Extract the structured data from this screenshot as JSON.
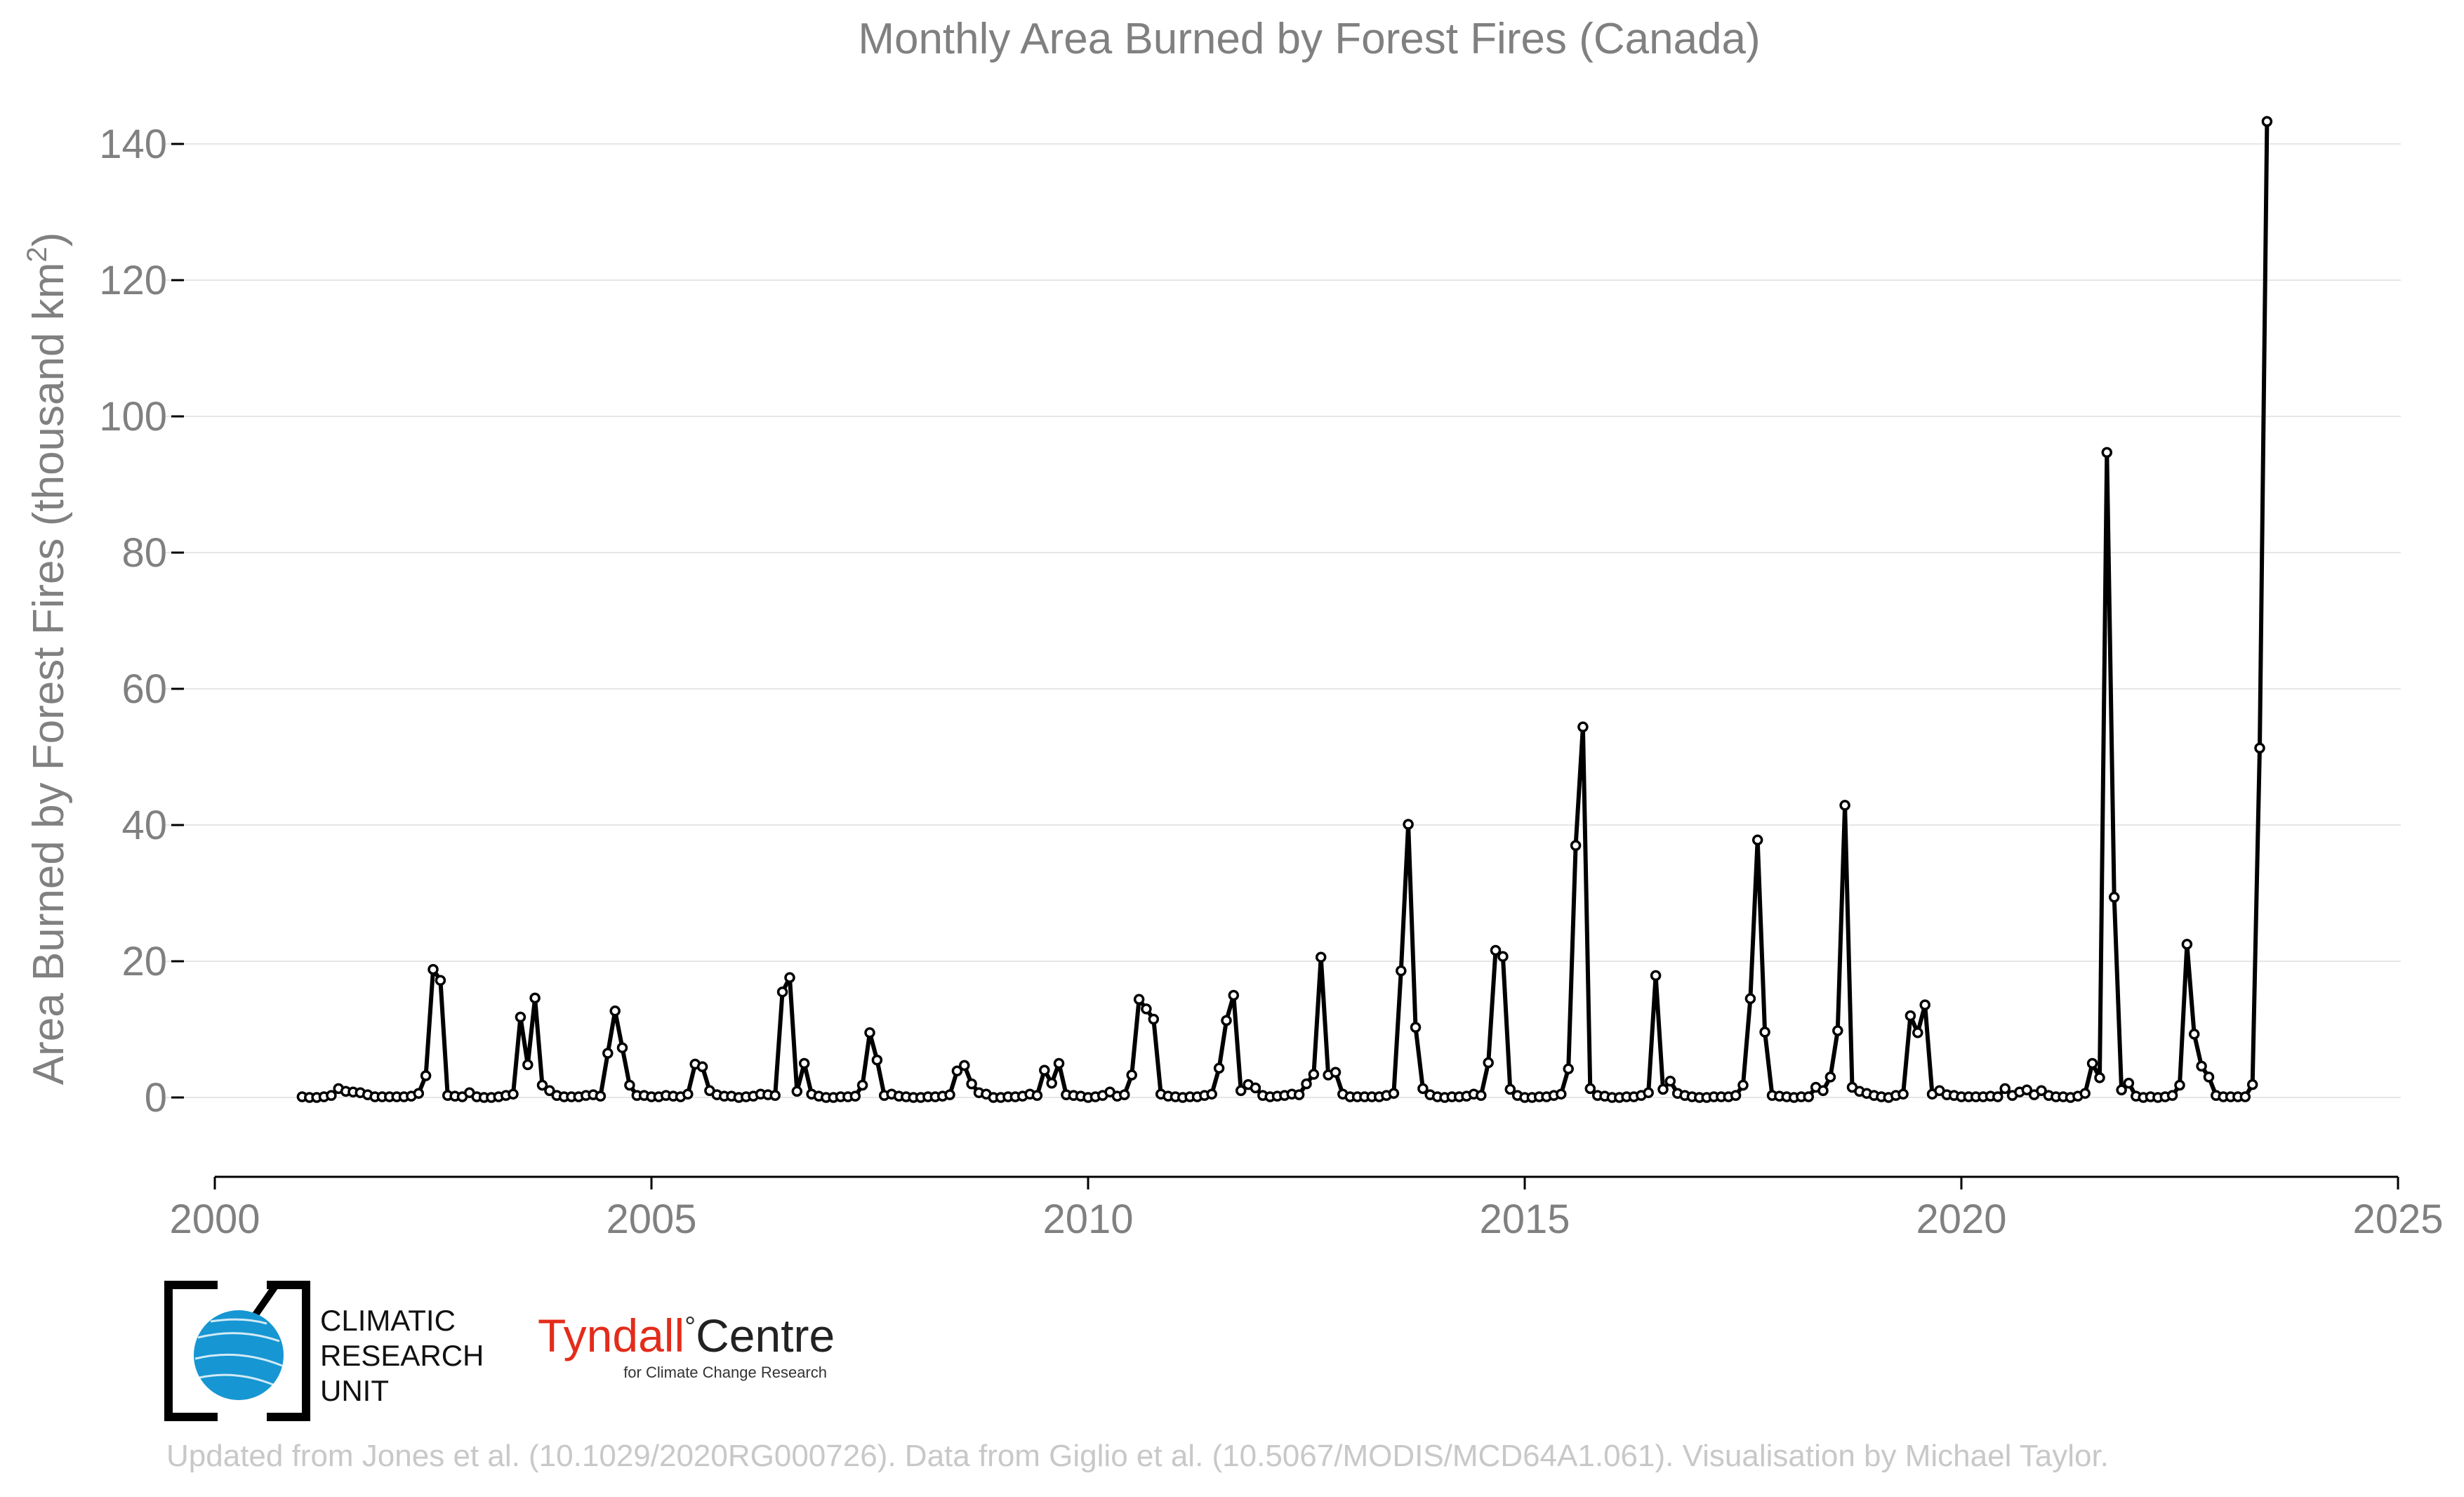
{
  "chart_data": {
    "type": "line",
    "title": "Monthly Area Burned by Forest Fires (Canada)",
    "ylabel_main": "Area Burned by Forest Fires (thousand km",
    "ylabel_sup": "2",
    "ylabel_close": ")",
    "xlim": [
      2000,
      2025
    ],
    "ylim": [
      -11,
      145
    ],
    "x_ticks": [
      2000,
      2005,
      2010,
      2015,
      2020,
      2025
    ],
    "y_ticks": [
      0,
      20,
      40,
      60,
      80,
      100,
      120,
      140
    ],
    "grid": "horizontal",
    "legend": "none",
    "x_start": "2001-01",
    "x_interval": "monthly",
    "series": [
      {
        "values": [
          0.1,
          0.0,
          0.0,
          0.1,
          0.3,
          1.3,
          0.9,
          0.8,
          0.7,
          0.4,
          0.1,
          0.1,
          0.1,
          0.1,
          0.1,
          0.2,
          0.6,
          3.2,
          18.8,
          17.2,
          0.3,
          0.2,
          0.1,
          0.7,
          0.1,
          0.0,
          0.0,
          0.1,
          0.3,
          0.5,
          11.8,
          4.8,
          14.6,
          1.8,
          1.0,
          0.3,
          0.1,
          0.1,
          0.1,
          0.3,
          0.4,
          0.2,
          6.5,
          12.7,
          7.3,
          1.8,
          0.3,
          0.3,
          0.1,
          0.1,
          0.3,
          0.2,
          0.1,
          0.5,
          4.9,
          4.5,
          1.0,
          0.4,
          0.2,
          0.2,
          0.0,
          0.1,
          0.2,
          0.5,
          0.4,
          0.3,
          15.5,
          17.6,
          0.9,
          5.0,
          0.5,
          0.2,
          0.0,
          0.0,
          0.1,
          0.1,
          0.2,
          1.8,
          9.5,
          5.5,
          0.3,
          0.5,
          0.2,
          0.1,
          0.0,
          0.0,
          0.1,
          0.1,
          0.2,
          0.4,
          3.9,
          4.7,
          2.0,
          0.7,
          0.5,
          0.0,
          0.0,
          0.1,
          0.1,
          0.2,
          0.5,
          0.3,
          4.0,
          2.1,
          5.0,
          0.4,
          0.3,
          0.2,
          0.0,
          0.1,
          0.3,
          0.8,
          0.2,
          0.4,
          3.3,
          14.4,
          13.0,
          11.5,
          0.5,
          0.2,
          0.1,
          0.0,
          0.1,
          0.1,
          0.3,
          0.5,
          4.3,
          11.3,
          15.0,
          1.0,
          1.9,
          1.4,
          0.3,
          0.1,
          0.2,
          0.3,
          0.5,
          0.4,
          2.0,
          3.4,
          20.6,
          3.3,
          3.7,
          0.5,
          0.1,
          0.1,
          0.1,
          0.1,
          0.1,
          0.3,
          0.6,
          18.6,
          40.1,
          10.3,
          1.3,
          0.4,
          0.1,
          0.0,
          0.1,
          0.1,
          0.2,
          0.5,
          0.3,
          5.1,
          21.6,
          20.7,
          1.2,
          0.3,
          0.0,
          0.0,
          0.1,
          0.1,
          0.3,
          0.5,
          4.2,
          37.0,
          54.4,
          1.3,
          0.3,
          0.2,
          0.0,
          0.0,
          0.1,
          0.1,
          0.3,
          0.7,
          17.9,
          1.2,
          2.4,
          0.6,
          0.3,
          0.1,
          0.0,
          0.0,
          0.1,
          0.1,
          0.1,
          0.3,
          1.8,
          14.5,
          37.8,
          9.6,
          0.3,
          0.2,
          0.1,
          0.0,
          0.1,
          0.1,
          1.5,
          1.0,
          3.0,
          9.8,
          42.9,
          1.5,
          0.9,
          0.6,
          0.3,
          0.1,
          0.0,
          0.3,
          0.5,
          12.0,
          9.5,
          13.6,
          0.5,
          1.0,
          0.4,
          0.3,
          0.1,
          0.1,
          0.1,
          0.1,
          0.2,
          0.1,
          1.3,
          0.3,
          0.8,
          1.1,
          0.4,
          1.0,
          0.3,
          0.1,
          0.1,
          0.0,
          0.2,
          0.6,
          5.0,
          2.9,
          94.7,
          29.4,
          1.1,
          2.1,
          0.2,
          0.0,
          0.1,
          0.0,
          0.1,
          0.3,
          1.8,
          22.5,
          9.3,
          4.6,
          3.0,
          0.3,
          0.1,
          0.1,
          0.1,
          0.1,
          1.9,
          51.3,
          143.3
        ]
      }
    ]
  },
  "credit_text": "Updated from Jones et al. (10.1029/2020RG000726). Data from Giglio et al. (10.5067/MODIS/MCD64A1.061). Visualisation by Michael Taylor.",
  "logos": {
    "cru": {
      "line1": "CLIMATIC",
      "line2": "RESEARCH",
      "line3": "UNIT"
    },
    "tyndall": {
      "name_red": "Tyndall",
      "degree": "°",
      "name_black": "Centre",
      "subtitle": "for Climate Change Research"
    }
  },
  "colors": {
    "line": "#000000",
    "marker_fill": "#ffffff",
    "grid": "#e6e6e6",
    "text": "#808080",
    "credit": "#c8c8c8",
    "tyndall_red": "#e32c1b",
    "globe_blue": "#1696d2"
  }
}
